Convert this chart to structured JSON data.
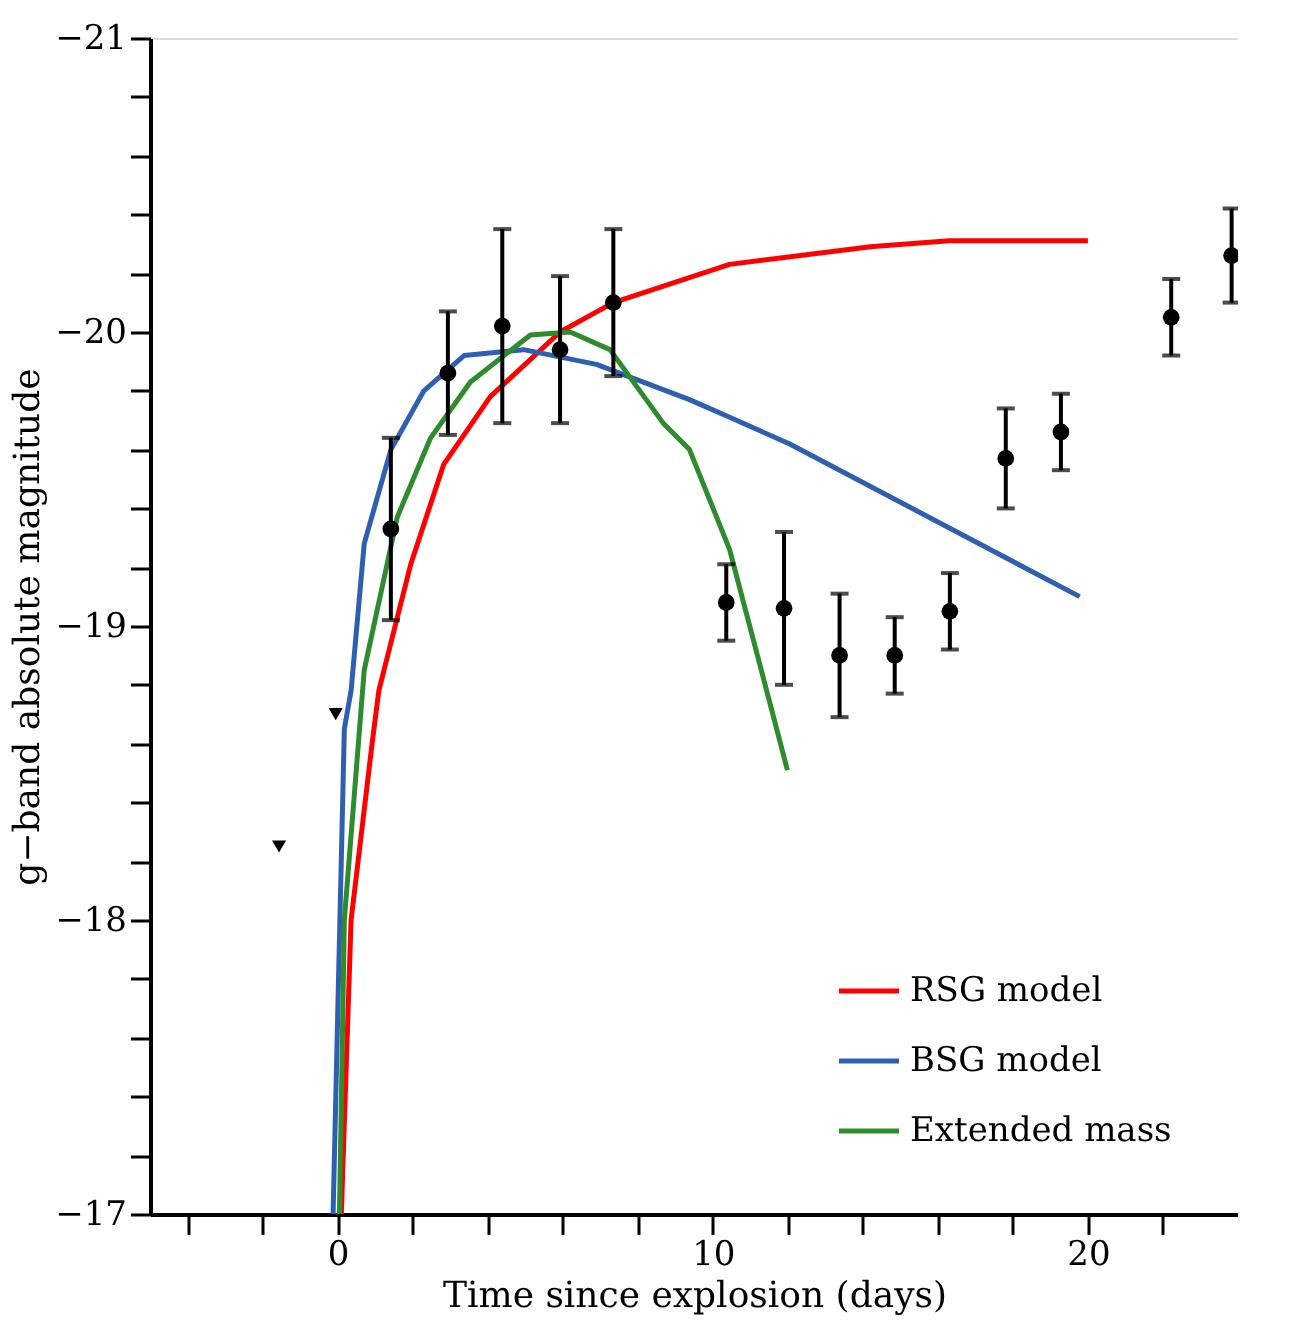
{
  "chart_data": {
    "type": "line",
    "xlabel": "Time since explosion (days)",
    "ylabel": "g−band absolute magnitude",
    "xlim": [
      -5,
      24
    ],
    "ylim": [
      -17,
      -21
    ],
    "xticks": [
      {
        "value": -4,
        "label": null
      },
      {
        "value": -2,
        "label": null
      },
      0,
      {
        "value": 2,
        "label": null
      },
      {
        "value": 4,
        "label": null
      },
      {
        "value": 6,
        "label": null
      },
      {
        "value": 8,
        "label": null
      },
      10,
      {
        "value": 12,
        "label": null
      },
      {
        "value": 14,
        "label": null
      },
      {
        "value": 16,
        "label": null
      },
      {
        "value": 18,
        "label": null
      },
      20,
      {
        "value": 22,
        "label": null
      }
    ],
    "yticks": [
      -17,
      {
        "value": -17.2,
        "label": null
      },
      {
        "value": -17.4,
        "label": null
      },
      {
        "value": -17.6,
        "label": null
      },
      {
        "value": -17.8,
        "label": null
      },
      -18,
      {
        "value": -18.2,
        "label": null
      },
      {
        "value": -18.4,
        "label": null
      },
      {
        "value": -18.6,
        "label": null
      },
      {
        "value": -18.8,
        "label": null
      },
      -19,
      {
        "value": -19.2,
        "label": null
      },
      {
        "value": -19.4,
        "label": null
      },
      {
        "value": -19.6,
        "label": null
      },
      {
        "value": -19.8,
        "label": null
      },
      -20,
      {
        "value": -20.2,
        "label": null
      },
      {
        "value": -20.4,
        "label": null
      },
      {
        "value": -20.6,
        "label": null
      },
      {
        "value": -20.8,
        "label": null
      },
      -21
    ],
    "grid": false,
    "legend": "bottom right",
    "line_style": "solid",
    "series": [
      {
        "name": "RSG model",
        "type": "line",
        "color": "#ff0000",
        "marker": "none",
        "x": [
          0.1,
          0.36,
          0.92,
          1.1,
          1.95,
          2.83,
          4.07,
          5.93,
          7.35,
          10.45,
          14.2,
          16.3,
          20.0
        ],
        "values": [
          -17.0,
          -18.0,
          -18.6,
          -18.78,
          -19.21,
          -19.55,
          -19.78,
          -20.0,
          -20.1,
          -20.23,
          -20.29,
          -20.31,
          -20.31
        ]
      },
      {
        "name": "BSG model",
        "type": "line",
        "color": "#2f5fb0",
        "marker": "none",
        "x": [
          -0.12,
          0.18,
          0.36,
          0.71,
          1.42,
          2.3,
          3.37,
          4.96,
          6.9,
          9.38,
          10.45,
          12.04,
          19.78
        ],
        "values": [
          -17.0,
          -18.65,
          -18.78,
          -19.28,
          -19.6,
          -19.8,
          -19.92,
          -19.94,
          -19.89,
          -19.77,
          -19.71,
          -19.62,
          -19.1
        ]
      },
      {
        "name": "Extended mass",
        "type": "line",
        "color": "#2e8b2e",
        "marker": "none",
        "x": [
          0.05,
          0.18,
          0.71,
          1.59,
          2.48,
          3.54,
          5.14,
          6.2,
          7.26,
          8.68,
          9.38,
          10.45,
          11.15,
          11.99
        ],
        "values": [
          -17.0,
          -18.0,
          -18.85,
          -19.37,
          -19.64,
          -19.83,
          -19.99,
          -20.0,
          -19.94,
          -19.69,
          -19.6,
          -19.26,
          -18.92,
          -18.51
        ]
      },
      {
        "type": "scatter",
        "color": "#000000",
        "marker": "circle",
        "x": [
          1.42,
          2.94,
          4.39,
          5.93,
          7.35,
          10.36,
          11.9,
          13.38,
          14.85,
          16.32,
          17.81,
          19.28,
          22.22,
          23.83
        ],
        "values": [
          -19.33,
          -19.86,
          -20.02,
          -19.94,
          -20.1,
          -19.08,
          -19.06,
          -18.9,
          -18.9,
          -19.05,
          -19.57,
          -19.66,
          -20.05,
          -20.26
        ],
        "errors": [
          0.31,
          0.21,
          0.33,
          0.25,
          0.25,
          0.13,
          0.26,
          0.21,
          0.13,
          0.13,
          0.17,
          0.13,
          0.13,
          0.16
        ]
      },
      {
        "type": "scatter",
        "color": "#000000",
        "marker": "triangle",
        "x": [
          -1.56,
          -0.05
        ],
        "values": [
          -18.25,
          -18.7
        ]
      }
    ]
  }
}
